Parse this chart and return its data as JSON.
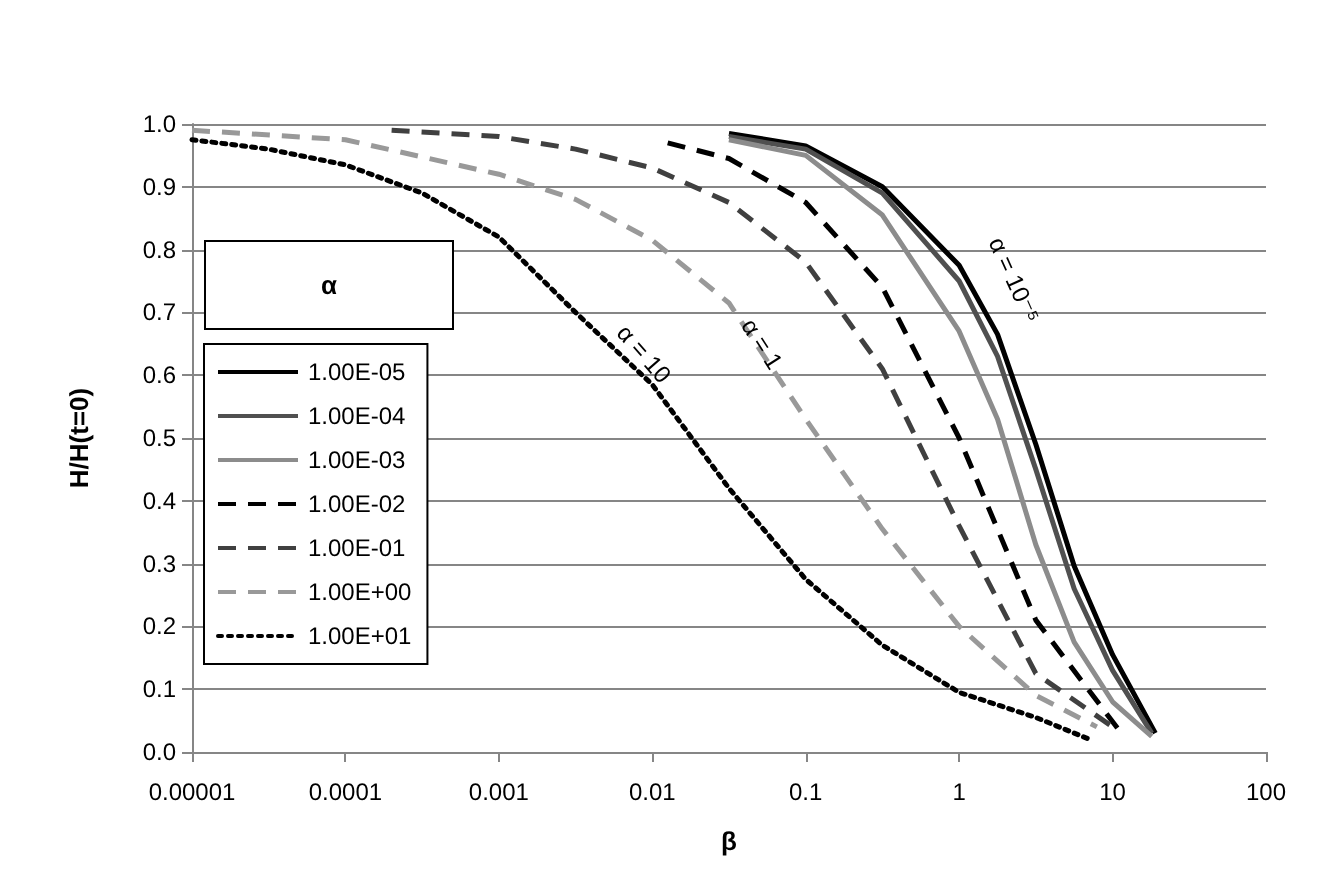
{
  "chart_data": {
    "type": "line",
    "xlabel": "β",
    "ylabel": "H/H(t=0)",
    "legend_title": "α",
    "log": "x",
    "grid": "y",
    "legend": "left",
    "marker": "none",
    "xlim": [
      1e-05,
      100
    ],
    "xticks": [
      {
        "value": 1e-05,
        "label": "0.00001"
      },
      {
        "value": 0.0001,
        "label": "0.0001"
      },
      {
        "value": 0.001,
        "label": "0.001"
      },
      {
        "value": 0.01,
        "label": "0.01"
      },
      {
        "value": 0.1,
        "label": "0.1"
      },
      {
        "value": 1,
        "label": "1"
      },
      {
        "value": 10,
        "label": "10"
      },
      {
        "value": 100,
        "label": "100"
      }
    ],
    "ylim": [
      0,
      1
    ],
    "yticks": [
      {
        "value": 0,
        "label": "0.0"
      },
      {
        "value": 0.1,
        "label": "0.1"
      },
      {
        "value": 0.2,
        "label": "0.2"
      },
      {
        "value": 0.3,
        "label": "0.3"
      },
      {
        "value": 0.4,
        "label": "0.4"
      },
      {
        "value": 0.5,
        "label": "0.5"
      },
      {
        "value": 0.6,
        "label": "0.6"
      },
      {
        "value": 0.7,
        "label": "0.7"
      },
      {
        "value": 0.8,
        "label": "0.8"
      },
      {
        "value": 0.9,
        "label": "0.9"
      },
      {
        "value": 1,
        "label": "1.0"
      }
    ],
    "series": [
      {
        "name": "1.00E-05",
        "color": "#000000",
        "line_style": "solid",
        "x": [
          0.0316,
          0.1,
          0.316,
          1,
          1.78,
          3.16,
          5.62,
          10,
          19
        ],
        "values": [
          0.985,
          0.965,
          0.9,
          0.775,
          0.665,
          0.49,
          0.296,
          0.155,
          0.03
        ]
      },
      {
        "name": "1.00E-04",
        "color": "#505050",
        "line_style": "solid",
        "x": [
          0.0316,
          0.1,
          0.316,
          1,
          1.78,
          3.16,
          5.62,
          10,
          18
        ],
        "values": [
          0.98,
          0.96,
          0.89,
          0.75,
          0.63,
          0.45,
          0.26,
          0.13,
          0.03
        ]
      },
      {
        "name": "1.00E-03",
        "color": "#8c8c8c",
        "line_style": "solid",
        "x": [
          0.0316,
          0.1,
          0.316,
          1,
          1.78,
          3.16,
          5.62,
          10,
          18
        ],
        "values": [
          0.975,
          0.95,
          0.855,
          0.67,
          0.53,
          0.33,
          0.175,
          0.08,
          0.025
        ]
      },
      {
        "name": "1.00E-02",
        "color": "#000000",
        "line_style": "dashed",
        "x": [
          0.0126,
          0.0316,
          0.1,
          0.316,
          1,
          3.16,
          11
        ],
        "values": [
          0.97,
          0.945,
          0.875,
          0.74,
          0.5,
          0.21,
          0.035
        ]
      },
      {
        "name": "1.00E-01",
        "color": "#404040",
        "line_style": "dashed",
        "x": [
          0.0002,
          0.001,
          0.00316,
          0.01,
          0.0316,
          0.1,
          0.316,
          1,
          3.16,
          10
        ],
        "values": [
          0.99,
          0.98,
          0.96,
          0.93,
          0.875,
          0.78,
          0.61,
          0.36,
          0.125,
          0.04
        ]
      },
      {
        "name": "1.00E+00",
        "color": "#999999",
        "line_style": "dashed",
        "x": [
          1e-05,
          0.0001,
          0.001,
          0.00316,
          0.01,
          0.0316,
          0.1,
          0.316,
          1,
          3.16,
          7.9
        ],
        "values": [
          0.99,
          0.975,
          0.92,
          0.88,
          0.815,
          0.715,
          0.53,
          0.355,
          0.2,
          0.09,
          0.04
        ]
      },
      {
        "name": "1.00E+01",
        "color": "#000000",
        "line_style": "dotted",
        "x": [
          1e-05,
          3.16e-05,
          0.0001,
          0.000316,
          0.001,
          0.00316,
          0.01,
          0.0316,
          0.1,
          0.316,
          1,
          3.16,
          7.1
        ],
        "values": [
          0.975,
          0.96,
          0.935,
          0.89,
          0.82,
          0.7,
          0.585,
          0.42,
          0.275,
          0.17,
          0.095,
          0.055,
          0.02
        ]
      }
    ],
    "annotations": [
      "α = 10⁻⁵",
      "α = 1",
      "α = 10"
    ]
  }
}
